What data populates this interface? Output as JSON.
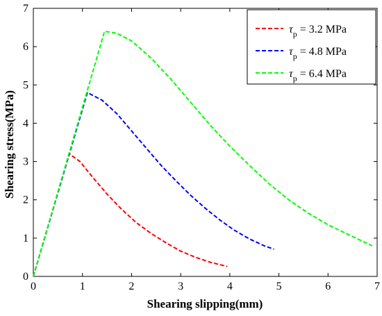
{
  "chart_data": {
    "type": "line",
    "xlabel": "Shearing slipping(mm)",
    "ylabel": "Shearing stress(MPa)",
    "xlim": [
      0,
      7
    ],
    "ylim": [
      0,
      7
    ],
    "xticks": [
      "0",
      "1",
      "2",
      "3",
      "4",
      "5",
      "6",
      "7"
    ],
    "yticks": [
      "0",
      "1",
      "2",
      "3",
      "4",
      "5",
      "6",
      "7"
    ],
    "grid": false,
    "legend_position": "top-right",
    "series": [
      {
        "name": "τp = 3.2 MPa",
        "legend": {
          "symbol": "τ",
          "subscript": "p",
          "rest": " = 3.2 MPa"
        },
        "color": "#ff0000",
        "x": [
          0,
          0.73,
          0.95,
          1.2,
          1.5,
          1.8,
          2.1,
          2.4,
          2.7,
          3.0,
          3.3,
          3.6,
          3.95
        ],
        "y": [
          0,
          3.2,
          3.0,
          2.6,
          2.15,
          1.75,
          1.4,
          1.12,
          0.88,
          0.66,
          0.5,
          0.37,
          0.26
        ]
      },
      {
        "name": "τp = 4.8 MPa",
        "legend": {
          "symbol": "τ",
          "subscript": "p",
          "rest": " = 4.8 MPa"
        },
        "color": "#0000ff",
        "x": [
          0,
          1.1,
          1.4,
          1.7,
          2.0,
          2.3,
          2.6,
          2.9,
          3.2,
          3.5,
          3.8,
          4.1,
          4.4,
          4.7,
          4.9
        ],
        "y": [
          0,
          4.8,
          4.6,
          4.25,
          3.8,
          3.35,
          2.9,
          2.5,
          2.12,
          1.78,
          1.47,
          1.2,
          0.98,
          0.8,
          0.71
        ]
      },
      {
        "name": "τp = 6.4 MPa",
        "legend": {
          "symbol": "τ",
          "subscript": "p",
          "rest": " = 6.4 MPa"
        },
        "color": "#00ff00",
        "x": [
          0,
          1.45,
          1.7,
          2.0,
          2.4,
          2.8,
          3.2,
          3.6,
          4.0,
          4.4,
          4.8,
          5.2,
          5.6,
          6.0,
          6.4,
          6.9
        ],
        "y": [
          0,
          6.4,
          6.35,
          6.15,
          5.7,
          5.15,
          4.55,
          3.95,
          3.4,
          2.9,
          2.42,
          2.0,
          1.65,
          1.35,
          1.1,
          0.8
        ]
      }
    ]
  }
}
